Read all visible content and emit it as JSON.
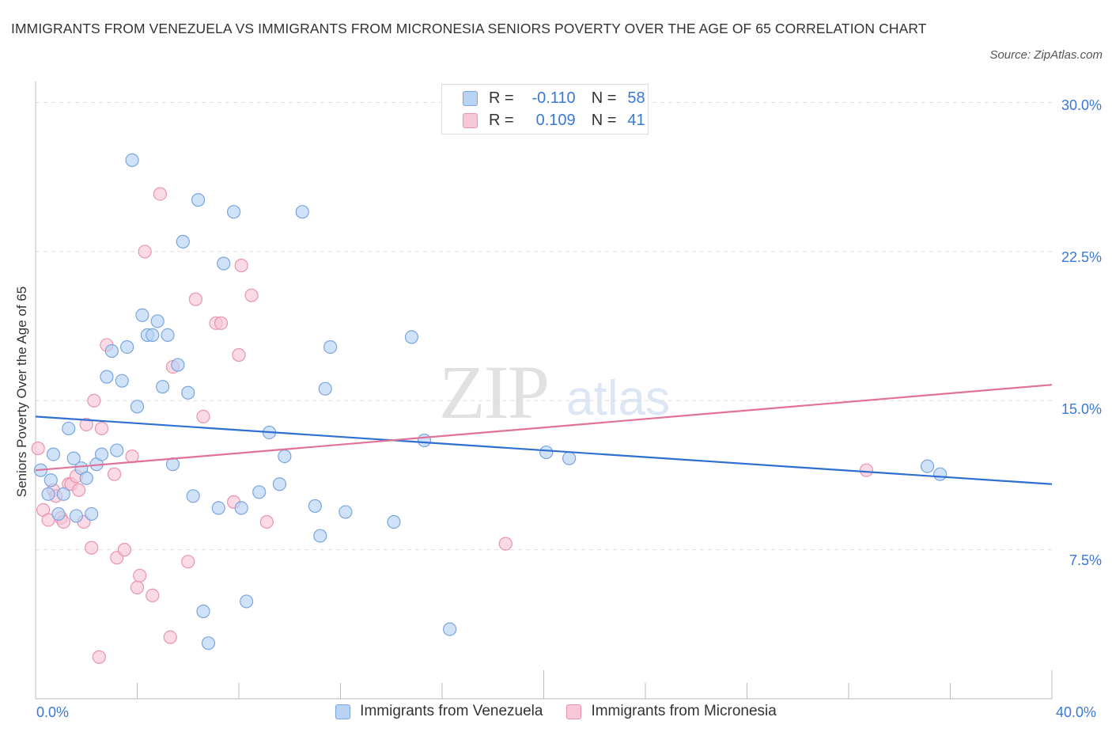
{
  "title": "IMMIGRANTS FROM VENEZUELA VS IMMIGRANTS FROM MICRONESIA SENIORS POVERTY OVER THE AGE OF 65 CORRELATION CHART",
  "source": "Source: ZipAtlas.com",
  "watermark": {
    "zip": "ZIP",
    "atlas": "atlas"
  },
  "legend": {
    "rows": [
      {
        "r_label": "R =",
        "r_value": "-0.110",
        "n_label": "N =",
        "n_value": "58",
        "color": "#a9c8f3"
      },
      {
        "r_label": "R =",
        "r_value": "0.109",
        "n_label": "N =",
        "n_value": "41",
        "color": "#f6b8cc"
      }
    ]
  },
  "colors": {
    "blue_fill": "#b7d2f4",
    "blue_stroke": "#7aa5de",
    "blue_line": "#2f6fd1",
    "pink_fill": "#f8c6d5",
    "pink_stroke": "#e993b0",
    "pink_line": "#e0729a",
    "tick_text": "#3a78d6"
  },
  "chart_data": {
    "type": "scatter",
    "title": "IMMIGRANTS FROM VENEZUELA VS IMMIGRANTS FROM MICRONESIA SENIORS POVERTY OVER THE AGE OF 65 CORRELATION CHART",
    "xlabel": "",
    "ylabel": "Seniors Poverty Over the Age of 65",
    "xlim": [
      0,
      40
    ],
    "ylim": [
      0,
      30
    ],
    "x_tick_labels": [
      "0.0%",
      "40.0%"
    ],
    "y_ticks": [
      7.5,
      15.0,
      22.5,
      30.0
    ],
    "y_tick_labels": [
      "7.5%",
      "15.0%",
      "22.5%",
      "30.0%"
    ],
    "grid": "horizontal dashed",
    "legend_position": "top-center",
    "series": [
      {
        "name": "Immigrants from Venezuela",
        "color": "#b7d2f4",
        "trend": {
          "x": [
            0,
            40
          ],
          "y": [
            14.2,
            10.8
          ]
        },
        "points": [
          [
            0.2,
            11.5
          ],
          [
            0.5,
            10.3
          ],
          [
            0.6,
            11.0
          ],
          [
            0.7,
            12.3
          ],
          [
            0.9,
            9.3
          ],
          [
            1.1,
            10.3
          ],
          [
            1.3,
            13.6
          ],
          [
            1.5,
            12.1
          ],
          [
            1.6,
            9.2
          ],
          [
            1.8,
            11.6
          ],
          [
            2.0,
            11.1
          ],
          [
            2.2,
            9.3
          ],
          [
            2.4,
            11.8
          ],
          [
            2.6,
            12.3
          ],
          [
            2.8,
            16.2
          ],
          [
            3.0,
            17.5
          ],
          [
            3.2,
            12.5
          ],
          [
            3.4,
            16.0
          ],
          [
            3.6,
            17.7
          ],
          [
            3.8,
            27.1
          ],
          [
            4.0,
            14.7
          ],
          [
            4.2,
            19.3
          ],
          [
            4.4,
            18.3
          ],
          [
            4.6,
            18.3
          ],
          [
            4.8,
            19.0
          ],
          [
            5.0,
            15.7
          ],
          [
            5.2,
            18.3
          ],
          [
            5.4,
            11.8
          ],
          [
            5.6,
            16.8
          ],
          [
            5.8,
            23.0
          ],
          [
            6.0,
            15.4
          ],
          [
            6.2,
            10.2
          ],
          [
            6.4,
            25.1
          ],
          [
            6.6,
            4.4
          ],
          [
            6.8,
            2.8
          ],
          [
            7.2,
            9.6
          ],
          [
            7.4,
            21.9
          ],
          [
            7.8,
            24.5
          ],
          [
            8.1,
            9.6
          ],
          [
            8.3,
            4.9
          ],
          [
            8.8,
            10.4
          ],
          [
            9.2,
            13.4
          ],
          [
            9.6,
            10.8
          ],
          [
            9.8,
            12.2
          ],
          [
            10.5,
            24.5
          ],
          [
            11.0,
            9.7
          ],
          [
            11.2,
            8.2
          ],
          [
            11.4,
            15.6
          ],
          [
            11.6,
            17.7
          ],
          [
            12.2,
            9.4
          ],
          [
            14.1,
            8.9
          ],
          [
            14.8,
            18.2
          ],
          [
            15.3,
            13.0
          ],
          [
            16.3,
            3.5
          ],
          [
            20.1,
            12.4
          ],
          [
            21.0,
            12.1
          ],
          [
            35.1,
            11.7
          ],
          [
            35.6,
            11.3
          ]
        ]
      },
      {
        "name": "Immigrants from Micronesia",
        "color": "#f8c6d5",
        "trend": {
          "x": [
            0,
            40
          ],
          "y": [
            11.5,
            15.8
          ]
        },
        "points": [
          [
            0.1,
            12.6
          ],
          [
            0.3,
            9.5
          ],
          [
            0.5,
            9.0
          ],
          [
            0.7,
            10.5
          ],
          [
            0.8,
            10.2
          ],
          [
            1.0,
            9.1
          ],
          [
            1.1,
            8.9
          ],
          [
            1.3,
            10.8
          ],
          [
            1.4,
            10.8
          ],
          [
            1.6,
            11.2
          ],
          [
            1.7,
            10.5
          ],
          [
            1.9,
            8.9
          ],
          [
            2.0,
            13.8
          ],
          [
            2.2,
            7.6
          ],
          [
            2.3,
            15.0
          ],
          [
            2.5,
            2.1
          ],
          [
            2.6,
            13.6
          ],
          [
            2.8,
            17.8
          ],
          [
            3.1,
            11.3
          ],
          [
            3.2,
            7.1
          ],
          [
            3.5,
            7.5
          ],
          [
            3.8,
            12.2
          ],
          [
            4.0,
            5.6
          ],
          [
            4.1,
            6.2
          ],
          [
            4.3,
            22.5
          ],
          [
            4.6,
            5.2
          ],
          [
            4.9,
            25.4
          ],
          [
            5.3,
            3.1
          ],
          [
            5.4,
            16.7
          ],
          [
            6.0,
            6.9
          ],
          [
            6.3,
            20.1
          ],
          [
            6.6,
            14.2
          ],
          [
            7.1,
            18.9
          ],
          [
            7.3,
            18.9
          ],
          [
            7.8,
            9.9
          ],
          [
            8.0,
            17.3
          ],
          [
            8.1,
            21.8
          ],
          [
            8.5,
            20.3
          ],
          [
            9.1,
            8.9
          ],
          [
            18.5,
            7.8
          ],
          [
            32.7,
            11.5
          ]
        ]
      }
    ]
  }
}
